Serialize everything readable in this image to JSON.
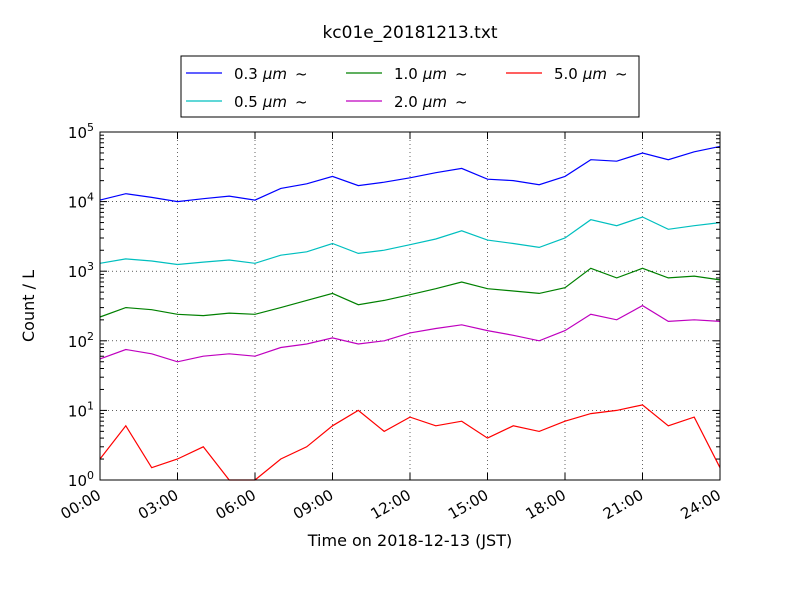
{
  "chart_data": {
    "type": "line",
    "title": "kc01e_20181213.txt",
    "xlabel": "Time on 2018-12-13 (JST)",
    "ylabel": "Count / L",
    "yscale": "log",
    "ylim": [
      1,
      100000
    ],
    "xlim_hours": [
      0,
      24
    ],
    "x_tick_labels": [
      "00:00",
      "03:00",
      "06:00",
      "09:00",
      "12:00",
      "15:00",
      "18:00",
      "21:00",
      "24:00"
    ],
    "y_tick_labels": [
      {
        "base": "10",
        "exp": "0"
      },
      {
        "base": "10",
        "exp": "1"
      },
      {
        "base": "10",
        "exp": "2"
      },
      {
        "base": "10",
        "exp": "3"
      },
      {
        "base": "10",
        "exp": "4"
      },
      {
        "base": "10",
        "exp": "5"
      }
    ],
    "grid": true,
    "legend_position": "top-center",
    "x_hours": [
      0,
      1,
      2,
      3,
      4,
      5,
      6,
      7,
      8,
      9,
      10,
      11,
      12,
      13,
      14,
      15,
      16,
      17,
      18,
      19,
      20,
      21,
      22,
      23,
      24
    ],
    "series": [
      {
        "name": "0.3",
        "unit": "μm",
        "suffix": "~",
        "color": "#0000ff",
        "values": [
          10500,
          13000,
          11500,
          10000,
          11000,
          12000,
          10500,
          15500,
          18000,
          23000,
          17000,
          19000,
          22000,
          26000,
          30000,
          21000,
          20000,
          17500,
          23000,
          40000,
          38000,
          50000,
          40000,
          52000,
          62000
        ]
      },
      {
        "name": "0.5",
        "unit": "μm",
        "suffix": "~",
        "color": "#00bfbf",
        "values": [
          1300,
          1500,
          1400,
          1250,
          1350,
          1450,
          1300,
          1700,
          1900,
          2500,
          1800,
          2000,
          2400,
          2900,
          3800,
          2800,
          2500,
          2200,
          3000,
          5500,
          4500,
          6000,
          4000,
          4500,
          5000
        ]
      },
      {
        "name": "1.0",
        "unit": "μm",
        "suffix": "~",
        "color": "#008000",
        "values": [
          220,
          300,
          280,
          240,
          230,
          250,
          240,
          300,
          380,
          480,
          330,
          380,
          460,
          560,
          700,
          560,
          520,
          480,
          580,
          1100,
          800,
          1100,
          800,
          850,
          750
        ]
      },
      {
        "name": "2.0",
        "unit": "μm",
        "suffix": "~",
        "color": "#bf00bf",
        "values": [
          55,
          75,
          65,
          50,
          60,
          65,
          60,
          80,
          90,
          110,
          90,
          100,
          130,
          150,
          170,
          140,
          120,
          100,
          140,
          240,
          200,
          320,
          190,
          200,
          190
        ]
      },
      {
        "name": "5.0",
        "unit": "μm",
        "suffix": "~",
        "color": "#ff0000",
        "values": [
          2,
          6,
          1.5,
          2,
          3,
          1,
          1,
          2,
          3,
          6,
          10,
          5,
          8,
          6,
          7,
          4,
          6,
          5,
          7,
          9,
          10,
          12,
          6,
          8,
          1.5
        ]
      }
    ]
  }
}
